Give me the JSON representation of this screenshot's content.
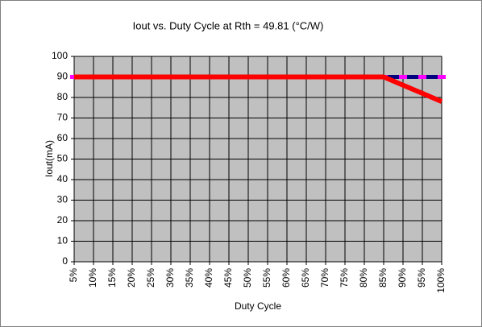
{
  "chart_data": {
    "type": "line",
    "title": "Iout vs. Duty Cycle at Rth = 49.81 (°C/W)",
    "x_label": "Duty Cycle",
    "y_label": "Iout(mA)",
    "categories": [
      "5%",
      "10%",
      "15%",
      "20%",
      "25%",
      "30%",
      "35%",
      "40%",
      "45%",
      "50%",
      "55%",
      "60%",
      "65%",
      "70%",
      "75%",
      "80%",
      "85%",
      "90%",
      "95%",
      "100%"
    ],
    "series": [
      {
        "color": "#000080",
        "marker_color": "#ff00ff",
        "values": [
          90,
          90,
          90,
          90,
          90,
          90,
          90,
          90,
          90,
          90,
          90,
          90,
          90,
          90,
          90,
          90,
          90,
          90,
          90,
          90
        ]
      },
      {
        "color": "#ff0000",
        "values": [
          90,
          90,
          90,
          90,
          90,
          90,
          90,
          90,
          90,
          90,
          90,
          90,
          90,
          90,
          90,
          90,
          90,
          86,
          82,
          78
        ]
      }
    ],
    "ylim": [
      0,
      100
    ],
    "yticks": [
      0,
      10,
      20,
      30,
      40,
      50,
      60,
      70,
      80,
      90,
      100
    ],
    "grid": true,
    "plot_background": "#c0c0c0"
  }
}
